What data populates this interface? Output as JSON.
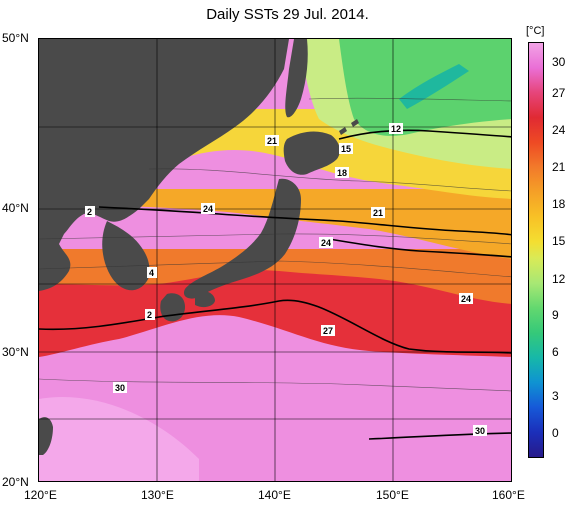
{
  "title": "Daily SSTs 29 Jul. 2014.",
  "lat_labels": [
    "50°N",
    "40°N",
    "30°N",
    "20°N"
  ],
  "lon_labels": [
    "120°E",
    "130°E",
    "140°E",
    "150°E",
    "160°E"
  ],
  "colorbar": {
    "unit": "[°C]",
    "ticks": [
      "30",
      "27",
      "24",
      "21",
      "18",
      "15",
      "12",
      "9",
      "6",
      "3",
      "0"
    ]
  },
  "contour_labels": [
    "21",
    "12",
    "15",
    "18",
    "24",
    "21",
    "24",
    "4",
    "24",
    "27",
    "2",
    "30",
    "30",
    "2"
  ],
  "colors": {
    "land": "#4a4a4a",
    "warm_pink": "#ee8fe0",
    "red": "#e5303a",
    "orange": "#f28a2a",
    "yellow": "#f6d63a",
    "green": "#5cd26e",
    "teal": "#1fb89e"
  }
}
